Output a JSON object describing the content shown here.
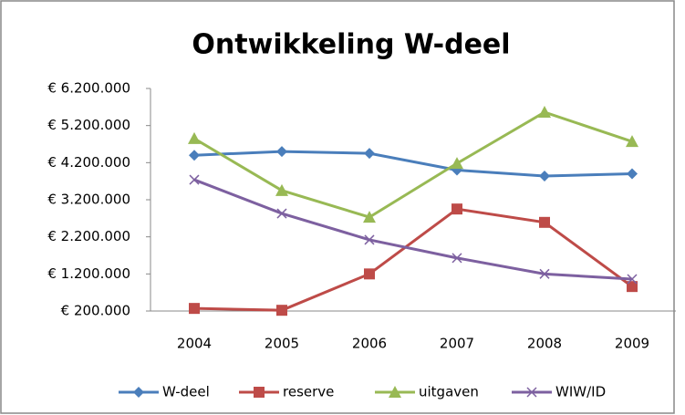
{
  "chart_data": {
    "type": "line",
    "title": "Ontwikkeling W-deel",
    "categories": [
      "2004",
      "2005",
      "2006",
      "2007",
      "2008",
      "2009"
    ],
    "series": [
      {
        "name": "W-deel",
        "color": "#4a7ebb",
        "marker": "diamond",
        "values": [
          4400000,
          4500000,
          4450000,
          4000000,
          3840000,
          3900000
        ]
      },
      {
        "name": "reserve",
        "color": "#be4b48",
        "marker": "square",
        "values": [
          270000,
          220000,
          1200000,
          2950000,
          2590000,
          860000
        ]
      },
      {
        "name": "uitgaven",
        "color": "#98b954",
        "marker": "triangle",
        "values": [
          4850000,
          3450000,
          2730000,
          4180000,
          5560000,
          4770000
        ]
      },
      {
        "name": "WIW/ID",
        "color": "#7d60a0",
        "marker": "x",
        "values": [
          3740000,
          2830000,
          2120000,
          1630000,
          1200000,
          1060000
        ]
      }
    ],
    "ylim": [
      200000,
      6200000
    ],
    "yticks": [
      {
        "value": 200000,
        "label": "€ 200.000"
      },
      {
        "value": 1200000,
        "label": "€ 1.200.000"
      },
      {
        "value": 2200000,
        "label": "€ 2.200.000"
      },
      {
        "value": 3200000,
        "label": "€ 3.200.000"
      },
      {
        "value": 4200000,
        "label": "€ 4.200.000"
      },
      {
        "value": 5200000,
        "label": "€ 5.200.000"
      },
      {
        "value": 6200000,
        "label": "€ 6.200.000"
      }
    ],
    "grid": false,
    "legend": "bottom"
  }
}
